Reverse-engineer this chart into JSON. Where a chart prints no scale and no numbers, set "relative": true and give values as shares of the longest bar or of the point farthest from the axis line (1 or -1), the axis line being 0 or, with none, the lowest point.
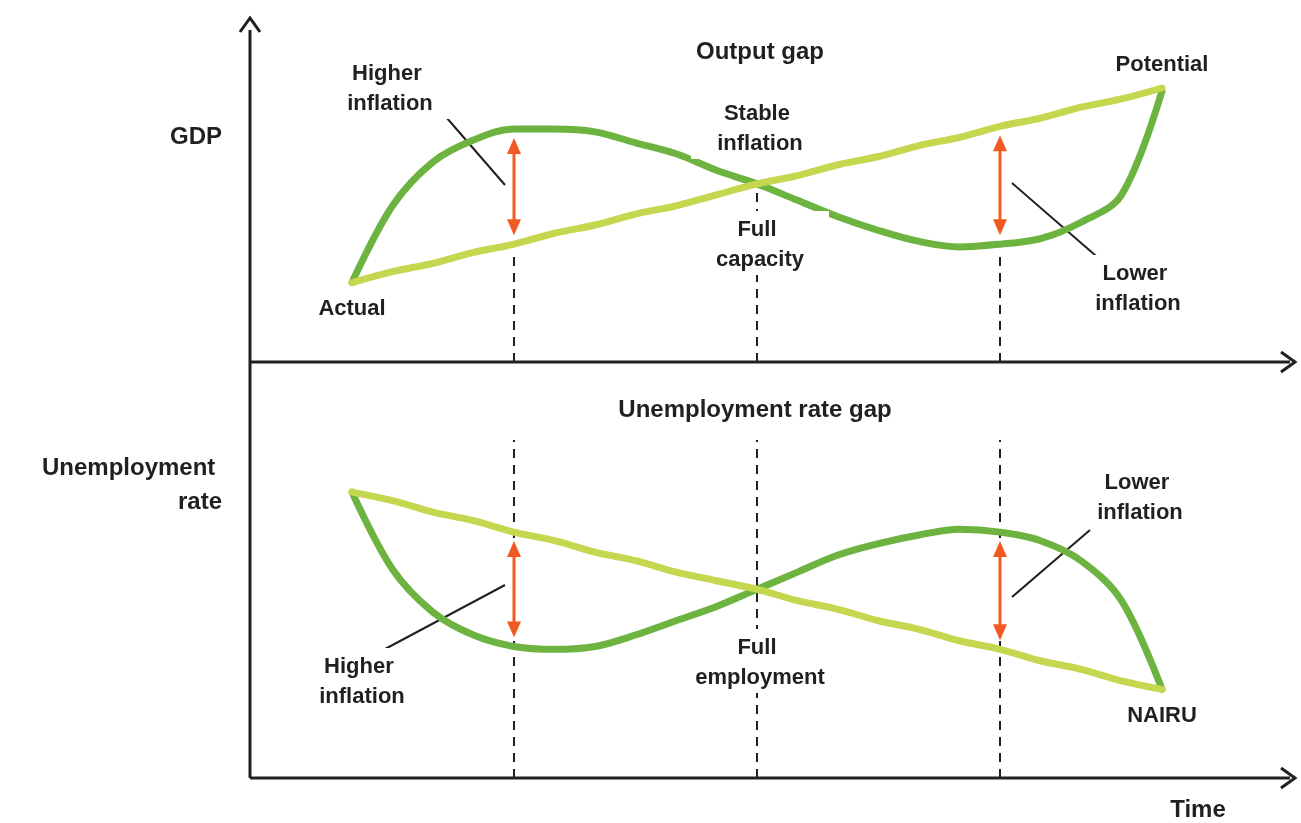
{
  "chart_data": [
    {
      "type": "line",
      "title": "Output gap",
      "ylabel": "GDP",
      "relative": true,
      "categories": [
        null,
        null,
        null,
        null,
        null,
        null,
        null,
        null,
        null,
        null,
        null,
        null,
        null,
        null,
        null,
        null,
        null,
        null,
        null,
        null,
        null
      ],
      "series": [
        {
          "name": "Actual",
          "color": "#6db33f",
          "values": [
            0.29,
            0.57,
            0.73,
            0.81,
            0.85,
            0.85,
            0.84,
            0.8,
            0.76,
            0.7,
            0.65,
            0.59,
            0.53,
            0.48,
            0.44,
            0.42,
            0.43,
            0.45,
            0.51,
            0.61,
            0.99
          ]
        },
        {
          "name": "Potential",
          "color": "#c5d64f",
          "values": [
            0.29,
            0.33,
            0.36,
            0.4,
            0.43,
            0.47,
            0.5,
            0.54,
            0.57,
            0.61,
            0.65,
            0.68,
            0.72,
            0.75,
            0.79,
            0.82,
            0.86,
            0.89,
            0.93,
            0.96,
            1
          ]
        }
      ],
      "annotations": [
        "Higher inflation",
        "Stable inflation",
        "Lower inflation",
        "Full capacity"
      ]
    },
    {
      "type": "line",
      "title": "Unemployment rate gap",
      "ylabel": "Unemployment rate",
      "xlabel": "Time",
      "relative": true,
      "grid": "x",
      "categories": [
        null,
        null,
        null,
        null,
        null,
        null,
        null,
        null,
        null,
        null,
        null,
        null,
        null,
        null,
        null,
        null,
        null,
        null,
        null,
        null,
        null
      ],
      "series": [
        {
          "color": "#6db33f",
          "values": [
            1,
            0.73,
            0.58,
            0.5,
            0.46,
            0.45,
            0.46,
            0.5,
            0.55,
            0.6,
            0.66,
            0.72,
            0.78,
            0.82,
            0.85,
            0.87,
            0.86,
            0.83,
            0.76,
            0.62,
            0.31
          ]
        },
        {
          "name": "NAIRU",
          "color": "#c5d64f",
          "values": [
            1,
            0.97,
            0.93,
            0.9,
            0.86,
            0.83,
            0.79,
            0.76,
            0.72,
            0.69,
            0.66,
            0.62,
            0.59,
            0.55,
            0.52,
            0.48,
            0.45,
            0.41,
            0.38,
            0.34,
            0.31
          ]
        }
      ],
      "annotations": [
        "Higher inflation",
        "Lower inflation",
        "Full employment"
      ]
    }
  ]
}
